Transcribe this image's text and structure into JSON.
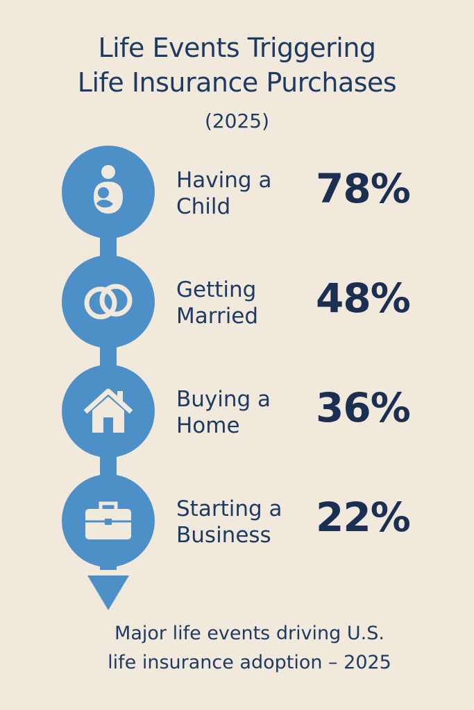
{
  "title": {
    "line1": "Life Events Triggering",
    "line2": "Life Insurance Purchases"
  },
  "year": "(2025)",
  "colors": {
    "background": "#f2e9dd",
    "accent": "#4d8fc7",
    "text": "#1d3a63"
  },
  "events": [
    {
      "label_line1": "Having a",
      "label_line2": "Child",
      "percent": "78%",
      "icon": "parent-child-icon"
    },
    {
      "label_line1": "Getting",
      "label_line2": "Married",
      "percent": "48%",
      "icon": "rings-icon"
    },
    {
      "label_line1": "Buying a",
      "label_line2": "Home",
      "percent": "36%",
      "icon": "house-icon"
    },
    {
      "label_line1": "Starting a",
      "label_line2": "Business",
      "percent": "22%",
      "icon": "briefcase-icon"
    }
  ],
  "caption": {
    "line1": "Major life events driving U.S.",
    "line2": "life insurance adoption – 2025"
  }
}
